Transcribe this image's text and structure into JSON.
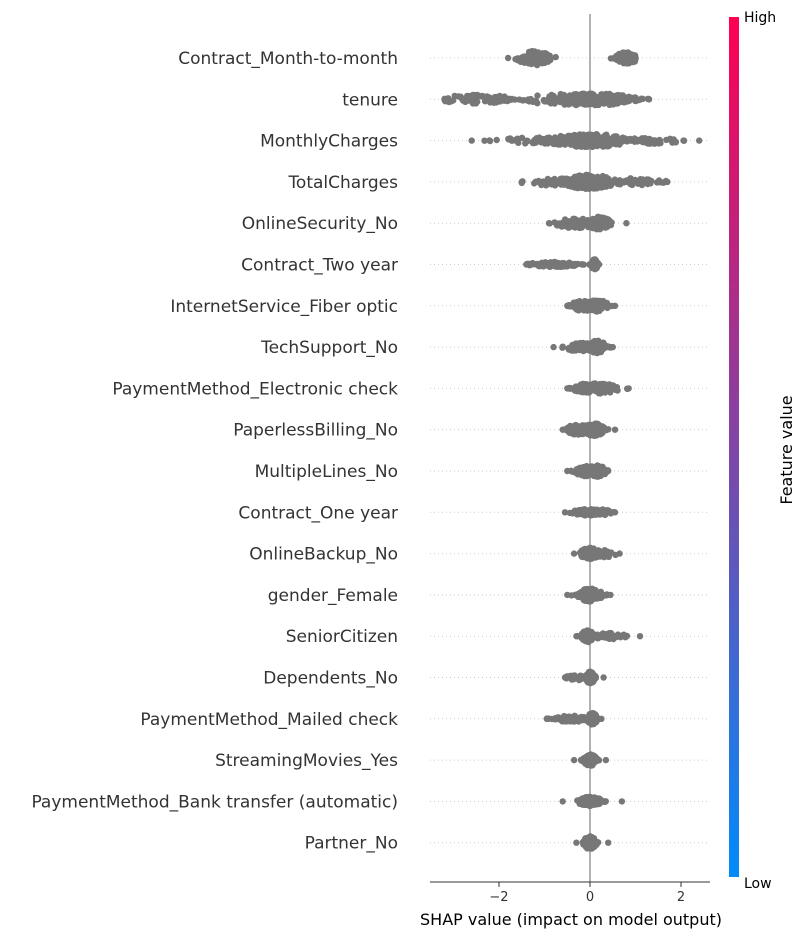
{
  "chart_data": {
    "type": "scatter",
    "subtype": "shap-beeswarm-summary",
    "title": "",
    "xlabel": "SHAP value (impact on model output)",
    "ylabel": "",
    "xlim": [
      -3.5,
      2.6
    ],
    "xticks": [
      -2,
      0,
      2
    ],
    "tick_labels": [
      "−2",
      "0",
      "2"
    ],
    "zero_line": 0,
    "grid": false,
    "point_color": "#777777",
    "colorbar": {
      "label": "Feature value",
      "high_label": "High",
      "low_label": "Low",
      "colors": [
        "#008bfb",
        "#ff0052"
      ],
      "placement": "right"
    },
    "features": [
      {
        "name": "Contract_Month-to-month",
        "clusters": [
          {
            "c": -1.2,
            "s": 0.22,
            "w": 0.55,
            "n": 100
          },
          {
            "c": 0.8,
            "s": 0.14,
            "w": 0.45,
            "n": 90
          }
        ],
        "range": [
          -1.8,
          1.0
        ]
      },
      {
        "name": "tenure",
        "clusters": [
          {
            "c": -0.3,
            "s": 0.7,
            "w": 0.45,
            "n": 160
          },
          {
            "c": 0.2,
            "s": 0.45,
            "w": 0.45,
            "n": 140
          },
          {
            "c": -2.5,
            "s": 0.45,
            "w": 0.35,
            "n": 60
          }
        ],
        "range": [
          -3.2,
          1.3
        ]
      },
      {
        "name": "MonthlyCharges",
        "clusters": [
          {
            "c": 0.0,
            "s": 0.55,
            "w": 0.5,
            "n": 180
          },
          {
            "c": -1.2,
            "s": 0.5,
            "w": 0.25,
            "n": 40
          },
          {
            "c": 1.3,
            "s": 0.4,
            "w": 0.25,
            "n": 40
          }
        ],
        "range": [
          -2.6,
          2.4
        ]
      },
      {
        "name": "TotalCharges",
        "clusters": [
          {
            "c": 0.0,
            "s": 0.35,
            "w": 0.55,
            "n": 170
          },
          {
            "c": -0.8,
            "s": 0.4,
            "w": 0.3,
            "n": 40
          },
          {
            "c": 1.0,
            "s": 0.35,
            "w": 0.3,
            "n": 40
          }
        ],
        "range": [
          -1.5,
          1.7
        ]
      },
      {
        "name": "OnlineSecurity_No",
        "clusters": [
          {
            "c": -0.3,
            "s": 0.25,
            "w": 0.4,
            "n": 80
          },
          {
            "c": 0.2,
            "s": 0.15,
            "w": 0.5,
            "n": 80
          }
        ],
        "range": [
          -0.9,
          0.8
        ]
      },
      {
        "name": "Contract_Two year",
        "clusters": [
          {
            "c": -0.8,
            "s": 0.3,
            "w": 0.2,
            "n": 90
          },
          {
            "c": 0.1,
            "s": 0.04,
            "w": 0.4,
            "n": 70
          }
        ],
        "range": [
          -1.4,
          0.2
        ]
      },
      {
        "name": "InternetService_Fiber optic",
        "clusters": [
          {
            "c": -0.15,
            "s": 0.15,
            "w": 0.4,
            "n": 80
          },
          {
            "c": 0.15,
            "s": 0.15,
            "w": 0.45,
            "n": 80
          }
        ],
        "range": [
          -0.5,
          0.55
        ]
      },
      {
        "name": "TechSupport_No",
        "clusters": [
          {
            "c": -0.2,
            "s": 0.2,
            "w": 0.35,
            "n": 80
          },
          {
            "c": 0.15,
            "s": 0.12,
            "w": 0.5,
            "n": 80
          }
        ],
        "range": [
          -0.8,
          0.5
        ]
      },
      {
        "name": "PaymentMethod_Electronic check",
        "clusters": [
          {
            "c": -0.1,
            "s": 0.15,
            "w": 0.35,
            "n": 80
          },
          {
            "c": 0.2,
            "s": 0.25,
            "w": 0.4,
            "n": 80
          }
        ],
        "range": [
          -0.5,
          0.85
        ]
      },
      {
        "name": "PaperlessBilling_No",
        "clusters": [
          {
            "c": -0.2,
            "s": 0.2,
            "w": 0.4,
            "n": 80
          },
          {
            "c": 0.1,
            "s": 0.12,
            "w": 0.5,
            "n": 80
          }
        ],
        "range": [
          -0.6,
          0.55
        ]
      },
      {
        "name": "MultipleLines_No",
        "clusters": [
          {
            "c": -0.1,
            "s": 0.15,
            "w": 0.4,
            "n": 80
          },
          {
            "c": 0.15,
            "s": 0.12,
            "w": 0.45,
            "n": 80
          }
        ],
        "range": [
          -0.5,
          0.4
        ]
      },
      {
        "name": "Contract_One year",
        "clusters": [
          {
            "c": -0.05,
            "s": 0.2,
            "w": 0.25,
            "n": 80
          },
          {
            "c": 0.2,
            "s": 0.15,
            "w": 0.25,
            "n": 60
          }
        ],
        "range": [
          -0.55,
          0.55
        ]
      },
      {
        "name": "OnlineBackup_No",
        "clusters": [
          {
            "c": 0.0,
            "s": 0.12,
            "w": 0.45,
            "n": 90
          },
          {
            "c": 0.3,
            "s": 0.15,
            "w": 0.3,
            "n": 40
          }
        ],
        "range": [
          -0.35,
          0.65
        ]
      },
      {
        "name": "gender_Female",
        "clusters": [
          {
            "c": 0.0,
            "s": 0.15,
            "w": 0.5,
            "n": 140
          }
        ],
        "range": [
          -0.5,
          0.45
        ]
      },
      {
        "name": "SeniorCitizen",
        "clusters": [
          {
            "c": -0.05,
            "s": 0.08,
            "w": 0.45,
            "n": 100
          },
          {
            "c": 0.35,
            "s": 0.25,
            "w": 0.25,
            "n": 40
          }
        ],
        "range": [
          -0.3,
          1.1
        ]
      },
      {
        "name": "Dependents_No",
        "clusters": [
          {
            "c": 0.0,
            "s": 0.06,
            "w": 0.45,
            "n": 90
          },
          {
            "c": -0.25,
            "s": 0.15,
            "w": 0.2,
            "n": 30
          }
        ],
        "range": [
          -0.55,
          0.3
        ]
      },
      {
        "name": "PaymentMethod_Mailed check",
        "clusters": [
          {
            "c": -0.4,
            "s": 0.2,
            "w": 0.25,
            "n": 60
          },
          {
            "c": 0.05,
            "s": 0.06,
            "w": 0.45,
            "n": 80
          }
        ],
        "range": [
          -0.95,
          0.25
        ]
      },
      {
        "name": "StreamingMovies_Yes",
        "clusters": [
          {
            "c": 0.0,
            "s": 0.08,
            "w": 0.45,
            "n": 110
          }
        ],
        "range": [
          -0.35,
          0.35
        ]
      },
      {
        "name": "PaymentMethod_Bank transfer (automatic)",
        "clusters": [
          {
            "c": 0.0,
            "s": 0.15,
            "w": 0.35,
            "n": 100
          }
        ],
        "range": [
          -0.6,
          0.7
        ]
      },
      {
        "name": "Partner_No",
        "clusters": [
          {
            "c": 0.0,
            "s": 0.08,
            "w": 0.5,
            "n": 110
          }
        ],
        "range": [
          -0.3,
          0.4
        ]
      }
    ]
  }
}
